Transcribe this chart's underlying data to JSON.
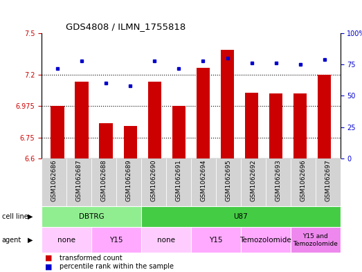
{
  "title": "GDS4808 / ILMN_1755818",
  "samples": [
    "GSM1062686",
    "GSM1062687",
    "GSM1062688",
    "GSM1062689",
    "GSM1062690",
    "GSM1062691",
    "GSM1062694",
    "GSM1062695",
    "GSM1062692",
    "GSM1062693",
    "GSM1062696",
    "GSM1062697"
  ],
  "red_values": [
    6.975,
    7.15,
    6.855,
    6.835,
    7.15,
    6.975,
    7.25,
    7.38,
    7.07,
    7.065,
    7.065,
    7.2
  ],
  "blue_values": [
    72,
    78,
    60,
    58,
    78,
    72,
    78,
    80,
    76,
    76,
    75,
    79
  ],
  "ylim_left": [
    6.6,
    7.5
  ],
  "ylim_right": [
    0,
    100
  ],
  "yticks_left": [
    6.6,
    6.75,
    6.975,
    7.2,
    7.5
  ],
  "ytick_labels_left": [
    "6.6",
    "6.75",
    "6.975",
    "7.2",
    "7.5"
  ],
  "yticks_right": [
    0,
    25,
    50,
    75,
    100
  ],
  "ytick_labels_right": [
    "0",
    "25",
    "50",
    "75",
    "100%"
  ],
  "hlines": [
    7.2,
    6.975,
    6.75
  ],
  "bar_color": "#cc0000",
  "dot_color": "#0000cc",
  "cell_line_groups": [
    {
      "label": "DBTRG",
      "start": 0,
      "end": 3,
      "color": "#90ee90"
    },
    {
      "label": "U87",
      "start": 4,
      "end": 11,
      "color": "#44cc44"
    }
  ],
  "agent_groups": [
    {
      "label": "none",
      "start": 0,
      "end": 1,
      "color": "#ffccff"
    },
    {
      "label": "Y15",
      "start": 2,
      "end": 3,
      "color": "#ffaaff"
    },
    {
      "label": "none",
      "start": 4,
      "end": 5,
      "color": "#ffccff"
    },
    {
      "label": "Y15",
      "start": 6,
      "end": 7,
      "color": "#ffaaff"
    },
    {
      "label": "Temozolomide",
      "start": 8,
      "end": 9,
      "color": "#ffaaff"
    },
    {
      "label": "Y15 and\nTemozolomide",
      "start": 10,
      "end": 11,
      "color": "#ee88ee"
    }
  ],
  "legend_red": "transformed count",
  "legend_blue": "percentile rank within the sample",
  "bar_color_label": "#cc0000",
  "dot_color_label": "#0000cc",
  "tick_label_bg": "#d3d3d3",
  "bar_width": 0.55
}
